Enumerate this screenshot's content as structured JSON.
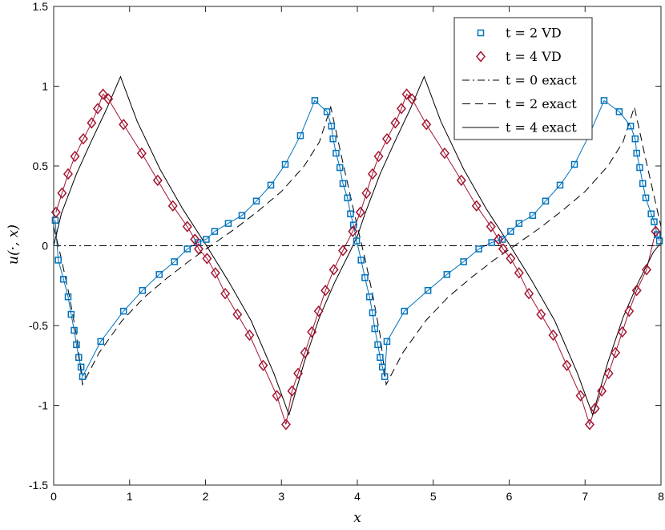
{
  "chart_data": {
    "type": "line",
    "title": "",
    "xlabel": "x",
    "ylabel": "u(·, x)",
    "xlim": [
      0,
      8
    ],
    "ylim": [
      -1.5,
      1.5
    ],
    "x_ticks": [
      "0",
      "1",
      "2",
      "3",
      "4",
      "5",
      "6",
      "7",
      "8"
    ],
    "y_ticks": [
      "-1.5",
      "-1",
      "-0.5",
      "0",
      "0.5",
      "1",
      "1.5"
    ],
    "grid": false,
    "legend_position": "top-right",
    "colors": {
      "t2": "#0072BD",
      "t4": "#A2142F",
      "exact": "#000000"
    },
    "series": [
      {
        "name": "t = 2 VD",
        "style": "markers-square",
        "x": [
          0.02,
          0.06,
          0.13,
          0.19,
          0.23,
          0.27,
          0.3,
          0.33,
          0.36,
          0.38,
          0.62,
          0.92,
          1.17,
          1.39,
          1.59,
          1.76,
          1.9,
          2.01,
          2.12,
          2.3,
          2.48,
          2.67,
          2.86,
          3.05,
          3.25,
          3.44,
          3.6,
          3.66,
          3.68,
          3.72,
          3.77,
          3.81,
          3.87,
          3.91,
          3.95,
          3.99,
          4.05,
          4.1,
          4.16,
          4.2,
          4.23,
          4.27,
          4.3,
          4.33,
          4.36,
          4.39,
          4.62,
          4.93,
          5.18,
          5.4,
          5.6,
          5.77,
          5.91,
          6.02,
          6.13,
          6.31,
          6.48,
          6.67,
          6.86,
          7.05,
          7.25,
          7.45,
          7.6,
          7.66,
          7.68,
          7.72,
          7.76,
          7.8,
          7.87,
          7.91,
          7.95,
          7.98
        ],
        "y": [
          0.16,
          -0.09,
          -0.21,
          -0.32,
          -0.43,
          -0.53,
          -0.62,
          -0.7,
          -0.76,
          -0.82,
          -0.6,
          -0.41,
          -0.28,
          -0.18,
          -0.1,
          -0.02,
          0.02,
          0.04,
          0.09,
          0.14,
          0.19,
          0.28,
          0.38,
          0.51,
          0.69,
          0.91,
          0.84,
          0.75,
          0.67,
          0.58,
          0.49,
          0.39,
          0.3,
          0.2,
          0.13,
          0.03,
          -0.09,
          -0.2,
          -0.32,
          -0.42,
          -0.52,
          -0.62,
          -0.7,
          -0.76,
          -0.82,
          -0.6,
          -0.41,
          -0.28,
          -0.18,
          -0.1,
          -0.02,
          0.02,
          0.04,
          0.09,
          0.14,
          0.19,
          0.28,
          0.38,
          0.51,
          0.69,
          0.91,
          0.84,
          0.75,
          0.67,
          0.58,
          0.49,
          0.39,
          0.3,
          0.2,
          0.15,
          0.07,
          0.03
        ]
      },
      {
        "name": "t = 4 VD",
        "style": "markers-diamond",
        "x": [
          0.03,
          0.11,
          0.19,
          0.28,
          0.39,
          0.5,
          0.58,
          0.65,
          0.72,
          0.92,
          1.16,
          1.37,
          1.57,
          1.76,
          1.86,
          1.91,
          2.02,
          2.13,
          2.26,
          2.42,
          2.58,
          2.76,
          2.94,
          3.06,
          3.14,
          3.22,
          3.31,
          3.4,
          3.49,
          3.58,
          3.69,
          3.81,
          3.94,
          4.04,
          4.12,
          4.2,
          4.28,
          4.39,
          4.5,
          4.58,
          4.65,
          4.72,
          4.91,
          5.15,
          5.37,
          5.57,
          5.76,
          5.86,
          5.92,
          6.02,
          6.13,
          6.26,
          6.42,
          6.58,
          6.76,
          6.94,
          7.06,
          7.13,
          7.22,
          7.31,
          7.4,
          7.49,
          7.58,
          7.68,
          7.81,
          7.93
        ],
        "y": [
          0.21,
          0.33,
          0.45,
          0.56,
          0.67,
          0.77,
          0.86,
          0.95,
          0.92,
          0.76,
          0.58,
          0.41,
          0.25,
          0.12,
          0.04,
          -0.02,
          -0.08,
          -0.17,
          -0.3,
          -0.43,
          -0.56,
          -0.75,
          -0.94,
          -1.12,
          -0.91,
          -0.8,
          -0.67,
          -0.54,
          -0.41,
          -0.28,
          -0.15,
          -0.03,
          0.09,
          0.21,
          0.33,
          0.45,
          0.56,
          0.67,
          0.77,
          0.86,
          0.95,
          0.92,
          0.76,
          0.58,
          0.41,
          0.25,
          0.12,
          0.04,
          -0.02,
          -0.08,
          -0.17,
          -0.3,
          -0.43,
          -0.56,
          -0.75,
          -0.94,
          -1.12,
          -1.02,
          -0.91,
          -0.8,
          -0.67,
          -0.54,
          -0.41,
          -0.28,
          -0.15,
          0.09
        ]
      },
      {
        "name": "t = 0 exact",
        "style": "dashdot",
        "x": [
          0,
          8
        ],
        "y": [
          0,
          0
        ]
      },
      {
        "name": "t = 2 exact",
        "style": "dashed",
        "x": [
          0,
          0.1,
          0.2,
          0.3,
          0.38,
          0.6,
          0.9,
          1.2,
          1.5,
          1.8,
          2.1,
          2.4,
          2.7,
          3.0,
          3.3,
          3.5,
          3.65,
          3.8,
          4.0,
          4.1,
          4.2,
          4.3,
          4.38,
          4.6,
          4.9,
          5.2,
          5.5,
          5.8,
          6.1,
          6.4,
          6.7,
          7.0,
          7.3,
          7.5,
          7.65,
          7.8,
          8.0
        ],
        "y": [
          0.12,
          -0.08,
          -0.3,
          -0.56,
          -0.87,
          -0.67,
          -0.47,
          -0.32,
          -0.2,
          -0.09,
          0.01,
          0.11,
          0.22,
          0.34,
          0.5,
          0.65,
          0.87,
          0.54,
          0.12,
          -0.08,
          -0.3,
          -0.56,
          -0.87,
          -0.67,
          -0.47,
          -0.32,
          -0.2,
          -0.09,
          0.01,
          0.11,
          0.22,
          0.34,
          0.5,
          0.65,
          0.87,
          0.54,
          0.12
        ]
      },
      {
        "name": "t = 4 exact",
        "style": "solid",
        "x": [
          0,
          0.1,
          0.3,
          0.5,
          0.7,
          0.88,
          1.1,
          1.4,
          1.7,
          2.0,
          2.3,
          2.6,
          2.9,
          3.1,
          3.3,
          3.5,
          3.7,
          3.9,
          4.0,
          4.1,
          4.3,
          4.5,
          4.7,
          4.88,
          5.1,
          5.4,
          5.7,
          6.0,
          6.3,
          6.6,
          6.9,
          7.1,
          7.3,
          7.5,
          7.7,
          7.9,
          8.0
        ],
        "y": [
          0.0,
          0.2,
          0.45,
          0.66,
          0.86,
          1.06,
          0.78,
          0.48,
          0.23,
          0.01,
          -0.22,
          -0.47,
          -0.8,
          -1.06,
          -0.73,
          -0.45,
          -0.23,
          -0.04,
          0.06,
          0.2,
          0.45,
          0.66,
          0.86,
          1.06,
          0.78,
          0.48,
          0.23,
          0.01,
          -0.22,
          -0.47,
          -0.8,
          -1.06,
          -0.73,
          -0.45,
          -0.23,
          -0.04,
          0.02
        ]
      }
    ]
  }
}
